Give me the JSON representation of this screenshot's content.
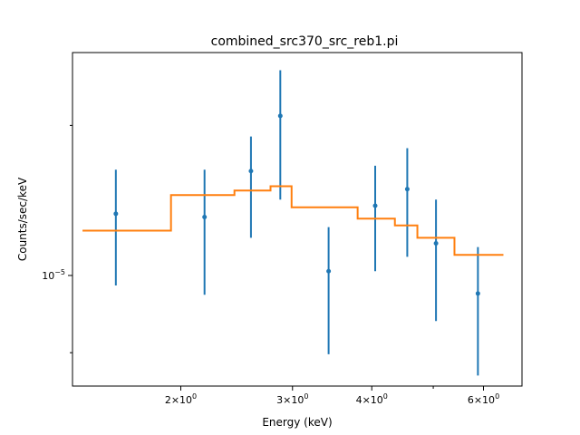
{
  "chart_data": {
    "type": "scatter",
    "title": "combined_src370_src_reb1.pi",
    "xlabel": "Energy (keV)",
    "ylabel": "Counts/sec/keV",
    "x_scale": "log",
    "y_scale": "log",
    "xlim": [
      1.35,
      6.9
    ],
    "ylim": [
      6e-06,
      2.8e-05
    ],
    "grid": false,
    "x_ticks": [
      {
        "value": 2,
        "base": "2×10",
        "exp": "0"
      },
      {
        "value": 3,
        "base": "3×10",
        "exp": "0"
      },
      {
        "value": 4,
        "base": "4×10",
        "exp": "0"
      },
      {
        "value": 6,
        "base": "6×10",
        "exp": "0"
      }
    ],
    "y_ticks": [
      {
        "value": 1e-05,
        "base": "10",
        "exp": "−5"
      }
    ],
    "x_minor_ticks": [
      5
    ],
    "y_minor_ticks": [
      7e-06,
      2e-05
    ],
    "series": [
      {
        "kind": "data",
        "color": "#1f77b4",
        "points": [
          {
            "x": 1.58,
            "y": 1.33e-05,
            "ylo": 9.55e-06,
            "yhi": 1.63e-05
          },
          {
            "x": 2.18,
            "y": 1.31e-05,
            "ylo": 9.15e-06,
            "yhi": 1.63e-05
          },
          {
            "x": 2.58,
            "y": 1.62e-05,
            "ylo": 1.19e-05,
            "yhi": 1.9e-05
          },
          {
            "x": 2.87,
            "y": 2.09e-05,
            "ylo": 1.42e-05,
            "yhi": 2.58e-05
          },
          {
            "x": 3.42,
            "y": 1.02e-05,
            "ylo": 6.95e-06,
            "yhi": 1.25e-05
          },
          {
            "x": 4.05,
            "y": 1.38e-05,
            "ylo": 1.02e-05,
            "yhi": 1.66e-05
          },
          {
            "x": 4.55,
            "y": 1.49e-05,
            "ylo": 1.09e-05,
            "yhi": 1.8e-05
          },
          {
            "x": 5.05,
            "y": 1.16e-05,
            "ylo": 8.1e-06,
            "yhi": 1.42e-05
          },
          {
            "x": 5.88,
            "y": 9.2e-06,
            "ylo": 6.3e-06,
            "yhi": 1.14e-05
          }
        ]
      },
      {
        "kind": "model",
        "color": "#ff7f0e",
        "steps": [
          {
            "x0": 1.4,
            "x1": 1.93,
            "y": 1.23e-05
          },
          {
            "x0": 1.93,
            "x1": 2.43,
            "y": 1.45e-05
          },
          {
            "x0": 2.43,
            "x1": 2.77,
            "y": 1.48e-05
          },
          {
            "x0": 2.77,
            "x1": 2.99,
            "y": 1.51e-05
          },
          {
            "x0": 2.99,
            "x1": 3.8,
            "y": 1.37e-05
          },
          {
            "x0": 3.8,
            "x1": 4.35,
            "y": 1.3e-05
          },
          {
            "x0": 4.35,
            "x1": 4.72,
            "y": 1.26e-05
          },
          {
            "x0": 4.72,
            "x1": 5.4,
            "y": 1.19e-05
          },
          {
            "x0": 5.4,
            "x1": 6.45,
            "y": 1.1e-05
          }
        ]
      }
    ]
  }
}
